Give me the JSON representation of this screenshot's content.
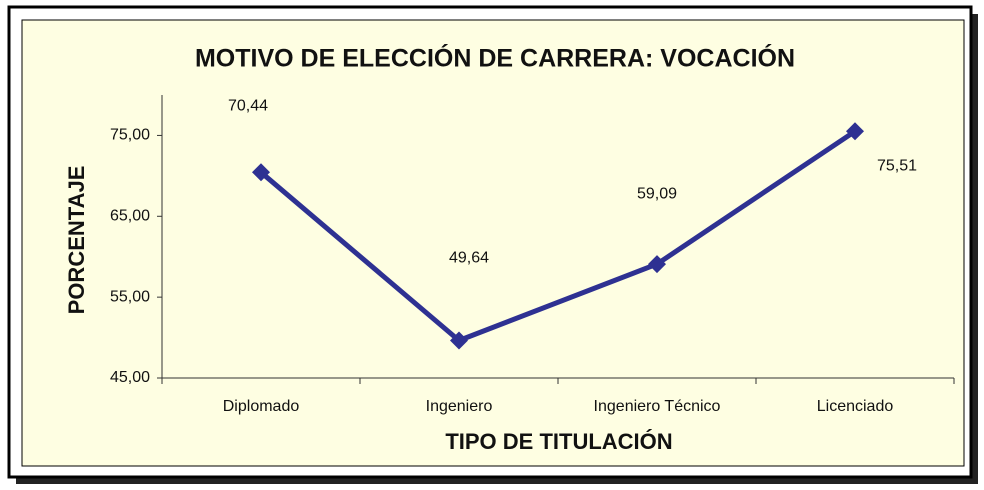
{
  "chart_data": {
    "type": "line",
    "title": "MOTIVO DE ELECCIÓN DE CARRERA: VOCACIÓN",
    "x_label": "TIPO DE TITULACIÓN",
    "y_label": "PORCENTAJE",
    "categories": [
      "Diplomado",
      "Ingeniero",
      "Ingeniero Técnico",
      "Licenciado"
    ],
    "series": [
      {
        "name": "Vocación",
        "color": "#2e3192",
        "values": [
          70.44,
          49.64,
          59.09,
          75.51
        ],
        "value_labels": [
          "70,44",
          "49,64",
          "59,09",
          "75,51"
        ]
      }
    ],
    "ylim": [
      45,
      80
    ],
    "yticks": [
      {
        "value": 45,
        "label": "45,00"
      },
      {
        "value": 55,
        "label": "55,00"
      },
      {
        "value": 65,
        "label": "65,00"
      },
      {
        "value": 75,
        "label": "75,00"
      }
    ],
    "grid": false
  }
}
